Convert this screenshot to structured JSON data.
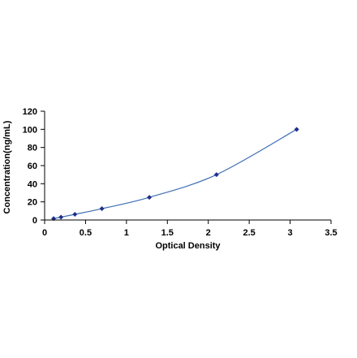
{
  "chart_data": {
    "type": "scatter",
    "title": "",
    "xlabel": "Optical Density",
    "ylabel": "Concentration(ng/mL)",
    "xlim": [
      0,
      3.5
    ],
    "ylim": [
      0,
      120
    ],
    "x_ticks": [
      0,
      0.5,
      1,
      1.5,
      2,
      2.5,
      3,
      3.5
    ],
    "x_tick_labels": [
      "0",
      "0.5",
      "1",
      "1.5",
      "2",
      "2.5",
      "3",
      "3.5"
    ],
    "y_ticks": [
      0,
      20,
      40,
      60,
      80,
      100,
      120
    ],
    "y_tick_labels": [
      "0",
      "20",
      "40",
      "60",
      "80",
      "100",
      "120"
    ],
    "grid": false,
    "legend": "none",
    "series": [
      {
        "x": [
          0.11,
          0.2,
          0.37,
          0.7,
          1.28,
          2.1,
          3.08
        ],
        "y": [
          1.56,
          3.12,
          6.25,
          12.5,
          25,
          50,
          100
        ],
        "line": "smooth",
        "marker": "diamond",
        "color": "#1f2f8a",
        "line_color": "#3f6fb5"
      }
    ]
  }
}
